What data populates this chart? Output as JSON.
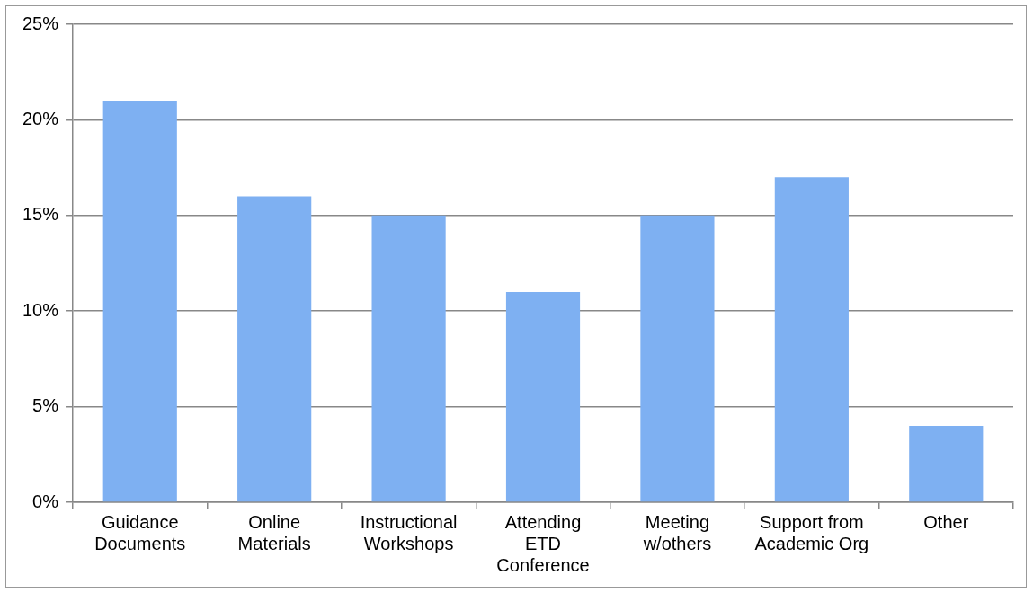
{
  "chart_data": {
    "type": "bar",
    "categories": [
      "Guidance Documents",
      "Online Materials",
      "Instructional Workshops",
      "Attending ETD Conference",
      "Meeting w/others",
      "Support from Academic Org",
      "Other"
    ],
    "values": [
      21,
      16,
      15,
      11,
      15,
      17,
      4
    ],
    "color": "#7eb0f2",
    "ylim": [
      0,
      25
    ],
    "yticks": [
      {
        "value": 0,
        "label": "0%"
      },
      {
        "value": 5,
        "label": "5%"
      },
      {
        "value": 10,
        "label": "10%"
      },
      {
        "value": 15,
        "label": "15%"
      },
      {
        "value": 20,
        "label": "20%"
      },
      {
        "value": 25,
        "label": "25%"
      }
    ],
    "grid": "y"
  }
}
